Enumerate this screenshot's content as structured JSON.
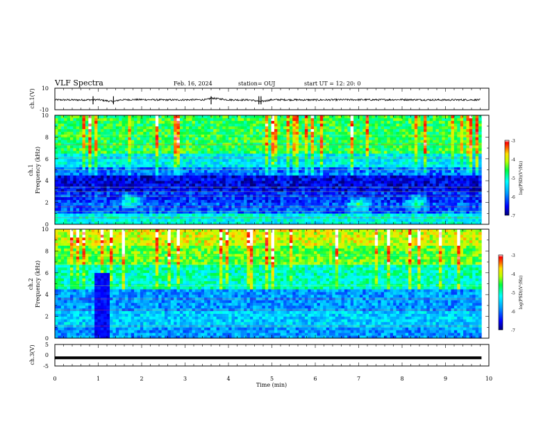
{
  "header": {
    "title": "VLF Spectra",
    "date": "Feb. 16, 2024",
    "station": "station= OUJ",
    "start": "start  UT  =   12: 20: 0"
  },
  "chart_data": [
    {
      "type": "line",
      "panel": "ch1-waveform",
      "ylabel": "ch.1(V)",
      "ylim": [
        -10,
        10
      ],
      "yticks": [
        "10",
        "-10"
      ],
      "color": "#000000",
      "x": [
        0.0,
        0.5,
        1.0,
        1.35,
        1.5,
        2.0,
        2.5,
        3.0,
        3.5,
        3.6,
        4.0,
        4.5,
        4.75,
        5.0,
        5.5,
        6.0,
        6.5,
        7.0,
        7.5,
        8.0,
        8.5,
        9.0,
        9.5,
        9.8
      ],
      "y": [
        -0.8,
        -0.9,
        -0.7,
        -2.5,
        -0.8,
        -0.6,
        -0.9,
        -0.8,
        -0.7,
        0.8,
        -0.8,
        -0.9,
        -2.4,
        -0.7,
        -0.8,
        -0.9,
        -0.8,
        -0.7,
        -0.8,
        -0.6,
        -0.8,
        -0.9,
        -0.8,
        -0.8
      ],
      "spikes_min": [
        0.88,
        1.35,
        3.6,
        4.7,
        4.75
      ]
    },
    {
      "type": "heatmap",
      "panel": "ch1-spectrogram",
      "ylabel": "ch.1\nFrequency  (kHz)",
      "ylim": [
        0,
        10
      ],
      "yticks": [
        "0",
        "2",
        "4",
        "6",
        "8",
        "10"
      ],
      "xlim": [
        0,
        9.83
      ],
      "colorbar": {
        "label": "log(PSD)(V²/Hz)",
        "range": [
          -7,
          -3
        ],
        "ticks": [
          "-3",
          "-4",
          "-5",
          "-6",
          "-7"
        ]
      },
      "frequency_bands_kHz": [
        [
          0,
          1,
          -5.2
        ],
        [
          1,
          2,
          -6.1
        ],
        [
          2,
          3,
          -6.3
        ],
        [
          3,
          4.4,
          -6.6
        ],
        [
          4.4,
          5.2,
          -6.0
        ],
        [
          5.2,
          6.5,
          -5.3
        ],
        [
          6.5,
          10,
          -4.6
        ]
      ],
      "features": [
        {
          "name": "chorus-burst",
          "t": 1.75,
          "f": 2.2
        },
        {
          "name": "hiss-patch",
          "t": 7.0,
          "f": 1.8
        },
        {
          "name": "hiss-patch",
          "t": 8.35,
          "f": 2.0
        }
      ]
    },
    {
      "type": "heatmap",
      "panel": "ch2-spectrogram",
      "ylabel": "ch.2\nFrequency  (kHz)",
      "ylim": [
        0,
        10
      ],
      "yticks": [
        "0",
        "2",
        "4",
        "6",
        "8",
        "10"
      ],
      "xlim": [
        0,
        9.83
      ],
      "colorbar": {
        "label": "log(PSD)(V²/Hz)",
        "range": [
          -7,
          -3
        ],
        "ticks": [
          "-3",
          "-4",
          "-5",
          "-6",
          "-7"
        ]
      },
      "frequency_bands_kHz": [
        [
          0,
          1,
          -5.8
        ],
        [
          1,
          2.4,
          -5.5
        ],
        [
          2.4,
          4.6,
          -5.8
        ],
        [
          4.6,
          6.8,
          -5.0
        ],
        [
          6.8,
          8.5,
          -4.4
        ],
        [
          8.5,
          10,
          -4.0
        ]
      ],
      "dropout_min": [
        0.92,
        1.28
      ]
    },
    {
      "type": "line",
      "panel": "ch3-waveform",
      "ylabel": "ch.3(V)",
      "ylim": [
        -5,
        5
      ],
      "yticks": [
        "5",
        "0",
        "-5"
      ],
      "xlabel": "Time  (min)",
      "xlim": [
        0,
        10
      ],
      "xticks": [
        "0",
        "1",
        "2",
        "3",
        "4",
        "5",
        "6",
        "7",
        "8",
        "9",
        "10"
      ],
      "x": [
        0,
        9.83
      ],
      "y": [
        -1.2,
        -1.2
      ]
    }
  ]
}
